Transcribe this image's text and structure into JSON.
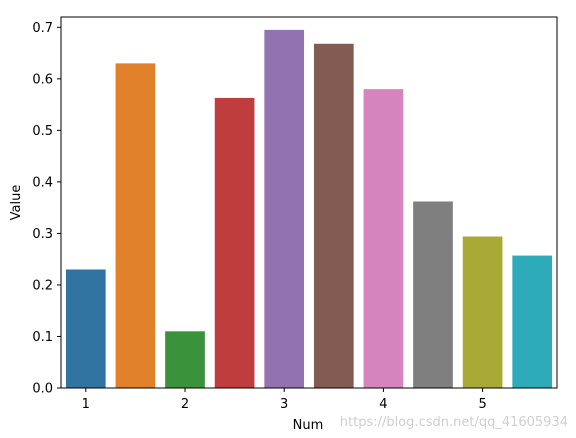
{
  "chart_data": {
    "type": "bar",
    "xlabel": "Num",
    "ylabel": "Value",
    "ylim": [
      0,
      0.72
    ],
    "yticks": [
      0.0,
      0.1,
      0.2,
      0.3,
      0.4,
      0.5,
      0.6,
      0.7
    ],
    "ytick_labels": [
      "0.0",
      "0.1",
      "0.2",
      "0.3",
      "0.4",
      "0.5",
      "0.6",
      "0.7"
    ],
    "xtick_labels": [
      "1",
      "2",
      "3",
      "4",
      "5"
    ],
    "xtick_bar_index": [
      0,
      2,
      4,
      6,
      8
    ],
    "values": [
      0.23,
      0.63,
      0.11,
      0.563,
      0.695,
      0.668,
      0.58,
      0.362,
      0.294,
      0.257
    ],
    "colors": [
      "#3274a1",
      "#e1812c",
      "#3a923a",
      "#c03d3e",
      "#9372b2",
      "#845b53",
      "#d684bd",
      "#7f7f7f",
      "#a9aa35",
      "#2eabb8"
    ],
    "grid": false
  },
  "watermark": "https://blog.csdn.net/qq_41605934"
}
